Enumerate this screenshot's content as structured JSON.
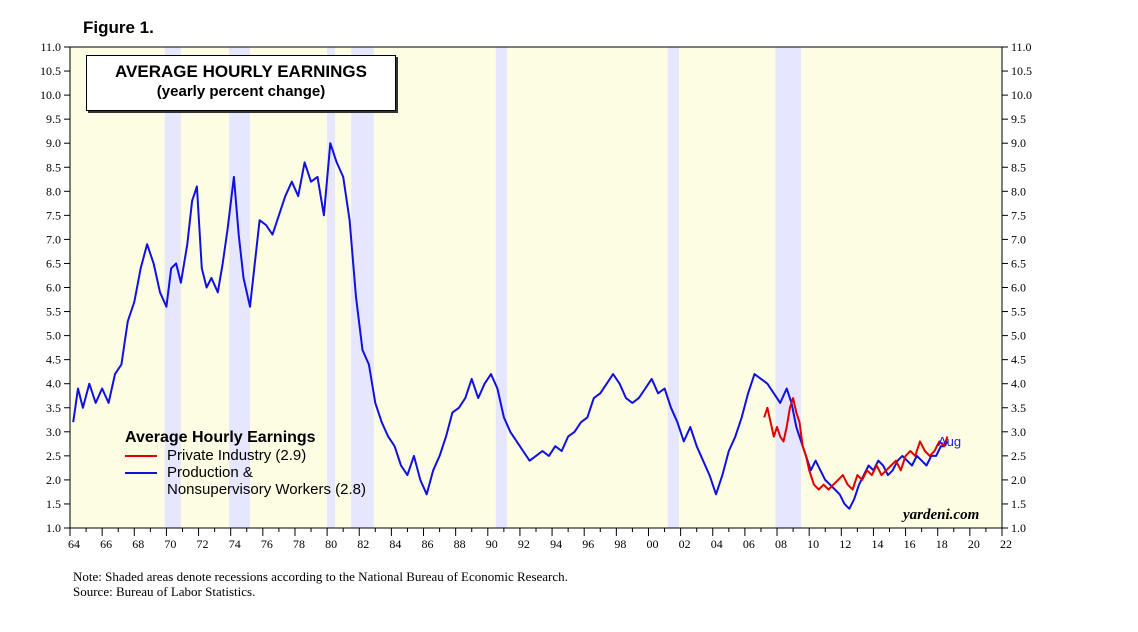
{
  "figure_label": "Figure 1.",
  "title_box": {
    "line1": "AVERAGE HOURLY EARNINGS",
    "line2": "(yearly percent change)"
  },
  "legend": {
    "title": "Average Hourly Earnings",
    "items": [
      {
        "label": "Private Industry (2.9)",
        "color": "#e00000"
      },
      {
        "label": "Production &\nNonsupervisory Workers (2.8)",
        "color": "#1010e0"
      }
    ]
  },
  "end_label": "Aug",
  "watermark": "yardeni.com",
  "notes": [
    "Note: Shaded areas denote recessions according to the National Bureau of Economic Research.",
    "Source: Bureau of Labor Statistics."
  ],
  "colors": {
    "plot_bg": "#fdfde4",
    "recession": "#e6e6ff",
    "private": "#e00000",
    "production": "#1010e0"
  },
  "chart_data": {
    "type": "line",
    "title": "AVERAGE HOURLY EARNINGS",
    "subtitle": "(yearly percent change)",
    "x_range": [
      1964,
      2022
    ],
    "ylim": [
      1.0,
      11.0
    ],
    "y_ticks": [
      "1.0",
      "1.5",
      "2.0",
      "2.5",
      "3.0",
      "3.5",
      "4.0",
      "4.5",
      "5.0",
      "5.5",
      "6.0",
      "6.5",
      "7.0",
      "7.5",
      "8.0",
      "8.5",
      "9.0",
      "9.5",
      "10.0",
      "10.5",
      "11.0"
    ],
    "x_tick_labels": [
      "64",
      "66",
      "68",
      "70",
      "72",
      "74",
      "76",
      "78",
      "80",
      "82",
      "84",
      "86",
      "88",
      "90",
      "92",
      "94",
      "96",
      "98",
      "00",
      "02",
      "04",
      "06",
      "08",
      "10",
      "12",
      "14",
      "16",
      "18",
      "20",
      "22"
    ],
    "x_tick_years": [
      1964,
      1966,
      1968,
      1970,
      1972,
      1974,
      1976,
      1978,
      1980,
      1982,
      1984,
      1986,
      1988,
      1990,
      1992,
      1994,
      1996,
      1998,
      2000,
      2002,
      2004,
      2006,
      2008,
      2010,
      2012,
      2014,
      2016,
      2018,
      2020,
      2022
    ],
    "recessions": [
      [
        1969.9,
        1970.9
      ],
      [
        1973.9,
        1975.2
      ],
      [
        1980.0,
        1980.5
      ],
      [
        1981.5,
        1982.9
      ],
      [
        1990.5,
        1991.2
      ],
      [
        2001.2,
        2001.9
      ],
      [
        2007.9,
        2009.5
      ]
    ],
    "series": [
      {
        "name": "Private Industry (2.9)",
        "color": "#e00000",
        "x": [
          2007.2,
          2007.4,
          2007.6,
          2007.8,
          2008.0,
          2008.2,
          2008.4,
          2008.6,
          2008.8,
          2009.0,
          2009.2,
          2009.4,
          2009.6,
          2009.8,
          2010.0,
          2010.3,
          2010.6,
          2010.9,
          2011.2,
          2011.5,
          2011.8,
          2012.1,
          2012.4,
          2012.7,
          2013.0,
          2013.3,
          2013.6,
          2013.9,
          2014.2,
          2014.5,
          2014.8,
          2015.1,
          2015.4,
          2015.7,
          2016.0,
          2016.3,
          2016.6,
          2016.9,
          2017.2,
          2017.5,
          2017.8,
          2018.1,
          2018.4,
          2018.6
        ],
        "y": [
          3.3,
          3.5,
          3.2,
          2.9,
          3.1,
          2.9,
          2.8,
          3.1,
          3.5,
          3.7,
          3.4,
          3.2,
          2.7,
          2.5,
          2.2,
          1.9,
          1.8,
          1.9,
          1.8,
          1.9,
          2.0,
          2.1,
          1.9,
          1.8,
          2.1,
          2.0,
          2.2,
          2.1,
          2.3,
          2.1,
          2.2,
          2.3,
          2.4,
          2.2,
          2.5,
          2.6,
          2.5,
          2.8,
          2.6,
          2.5,
          2.6,
          2.8,
          2.7,
          2.9
        ]
      },
      {
        "name": "Production & Nonsupervisory Workers (2.8)",
        "color": "#1010e0",
        "x": [
          1964.2,
          1964.5,
          1964.8,
          1965.2,
          1965.6,
          1966.0,
          1966.4,
          1966.8,
          1967.2,
          1967.6,
          1968.0,
          1968.4,
          1968.8,
          1969.2,
          1969.6,
          1970.0,
          1970.3,
          1970.6,
          1970.9,
          1971.3,
          1971.6,
          1971.9,
          1972.2,
          1972.5,
          1972.8,
          1973.2,
          1973.5,
          1973.8,
          1974.2,
          1974.5,
          1974.8,
          1975.2,
          1975.5,
          1975.8,
          1976.2,
          1976.6,
          1977.0,
          1977.4,
          1977.8,
          1978.2,
          1978.6,
          1979.0,
          1979.4,
          1979.8,
          1980.2,
          1980.6,
          1981.0,
          1981.4,
          1981.8,
          1982.2,
          1982.6,
          1983.0,
          1983.4,
          1983.8,
          1984.2,
          1984.6,
          1985.0,
          1985.4,
          1985.8,
          1986.2,
          1986.6,
          1987.0,
          1987.4,
          1987.8,
          1988.2,
          1988.6,
          1989.0,
          1989.4,
          1989.8,
          1990.2,
          1990.6,
          1991.0,
          1991.4,
          1991.8,
          1992.2,
          1992.6,
          1993.0,
          1993.4,
          1993.8,
          1994.2,
          1994.6,
          1995.0,
          1995.4,
          1995.8,
          1996.2,
          1996.6,
          1997.0,
          1997.4,
          1997.8,
          1998.2,
          1998.6,
          1999.0,
          1999.4,
          1999.8,
          2000.2,
          2000.6,
          2001.0,
          2001.4,
          2001.8,
          2002.2,
          2002.6,
          2003.0,
          2003.4,
          2003.8,
          2004.2,
          2004.6,
          2005.0,
          2005.4,
          2005.8,
          2006.2,
          2006.6,
          2007.0,
          2007.4,
          2007.8,
          2008.2,
          2008.6,
          2008.9,
          2009.2,
          2009.5,
          2009.8,
          2010.1,
          2010.4,
          2010.7,
          2011.0,
          2011.3,
          2011.6,
          2011.9,
          2012.2,
          2012.5,
          2012.8,
          2013.1,
          2013.4,
          2013.7,
          2014.0,
          2014.3,
          2014.6,
          2014.9,
          2015.2,
          2015.5,
          2015.8,
          2016.1,
          2016.4,
          2016.7,
          2017.0,
          2017.3,
          2017.6,
          2017.9,
          2018.2,
          2018.4,
          2018.6
        ],
        "y": [
          3.2,
          3.9,
          3.5,
          4.0,
          3.6,
          3.9,
          3.6,
          4.2,
          4.4,
          5.3,
          5.7,
          6.4,
          6.9,
          6.5,
          5.9,
          5.6,
          6.4,
          6.5,
          6.1,
          6.9,
          7.8,
          8.1,
          6.4,
          6.0,
          6.2,
          5.9,
          6.5,
          7.2,
          8.3,
          7.1,
          6.2,
          5.6,
          6.5,
          7.4,
          7.3,
          7.1,
          7.5,
          7.9,
          8.2,
          7.9,
          8.6,
          8.2,
          8.3,
          7.5,
          9.0,
          8.6,
          8.3,
          7.4,
          5.8,
          4.7,
          4.4,
          3.6,
          3.2,
          2.9,
          2.7,
          2.3,
          2.1,
          2.5,
          2.0,
          1.7,
          2.2,
          2.5,
          2.9,
          3.4,
          3.5,
          3.7,
          4.1,
          3.7,
          4.0,
          4.2,
          3.9,
          3.3,
          3.0,
          2.8,
          2.6,
          2.4,
          2.5,
          2.6,
          2.5,
          2.7,
          2.6,
          2.9,
          3.0,
          3.2,
          3.3,
          3.7,
          3.8,
          4.0,
          4.2,
          4.0,
          3.7,
          3.6,
          3.7,
          3.9,
          4.1,
          3.8,
          3.9,
          3.5,
          3.2,
          2.8,
          3.1,
          2.7,
          2.4,
          2.1,
          1.7,
          2.1,
          2.6,
          2.9,
          3.3,
          3.8,
          4.2,
          4.1,
          4.0,
          3.8,
          3.6,
          3.9,
          3.6,
          3.1,
          2.8,
          2.5,
          2.2,
          2.4,
          2.2,
          2.0,
          1.9,
          1.8,
          1.7,
          1.5,
          1.4,
          1.6,
          1.9,
          2.1,
          2.3,
          2.2,
          2.4,
          2.3,
          2.1,
          2.2,
          2.4,
          2.5,
          2.4,
          2.3,
          2.5,
          2.4,
          2.3,
          2.5,
          2.5,
          2.7,
          2.7,
          2.8
        ]
      }
    ],
    "grid": false,
    "legend_position": "bottom-left"
  }
}
